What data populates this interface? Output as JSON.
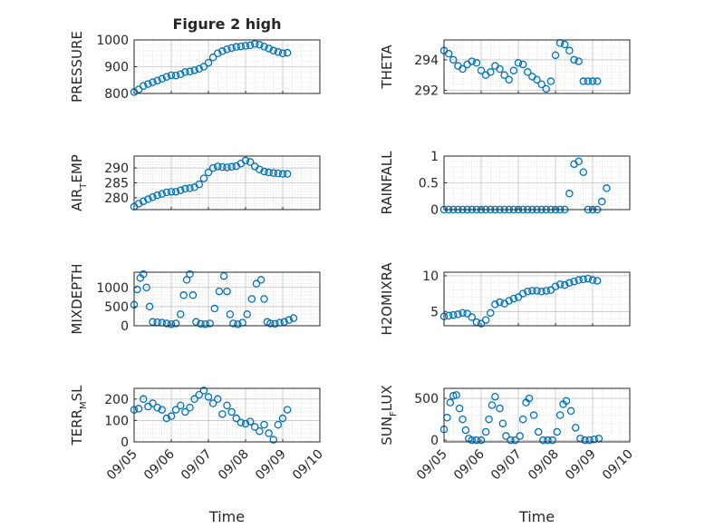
{
  "chart_data": [
    {
      "type": "scatter",
      "panel": "left-1",
      "title": "Figure 2 high",
      "ylabel": "PRESSURE",
      "xlabel": "",
      "ylim": [
        800,
        1000
      ],
      "yticks": [
        800,
        900,
        1000
      ],
      "xlim": [
        "09/05",
        "09/10"
      ],
      "xticks": [
        "09/05",
        "09/06",
        "09/07",
        "09/08",
        "09/09",
        "09/10"
      ],
      "show_x_tick_labels": false,
      "grid": true,
      "minor_grid": true,
      "color": "#0072bd",
      "x": [
        "09/05 00:00",
        "09/05 03:00",
        "09/05 06:00",
        "09/05 09:00",
        "09/05 12:00",
        "09/05 15:00",
        "09/05 18:00",
        "09/05 21:00",
        "09/06 00:00",
        "09/06 03:00",
        "09/06 06:00",
        "09/06 09:00",
        "09/06 12:00",
        "09/06 15:00",
        "09/06 18:00",
        "09/06 21:00",
        "09/07 00:00",
        "09/07 03:00",
        "09/07 06:00",
        "09/07 09:00",
        "09/07 12:00",
        "09/07 15:00",
        "09/07 18:00",
        "09/07 21:00",
        "09/08 00:00",
        "09/08 03:00",
        "09/08 06:00",
        "09/08 09:00",
        "09/08 12:00",
        "09/08 15:00",
        "09/08 18:00",
        "09/08 21:00",
        "09/09 00:00",
        "09/09 03:00"
      ],
      "y": [
        805,
        815,
        828,
        835,
        842,
        848,
        855,
        862,
        868,
        867,
        872,
        880,
        882,
        887,
        892,
        900,
        915,
        935,
        950,
        958,
        965,
        970,
        974,
        976,
        978,
        980,
        985,
        982,
        975,
        968,
        960,
        955,
        950,
        952
      ]
    },
    {
      "type": "scatter",
      "panel": "right-1",
      "ylabel": "THETA",
      "xlabel": "",
      "ylim": [
        291.8,
        295.3
      ],
      "yticks": [
        292,
        294
      ],
      "xlim": [
        "09/05",
        "09/10"
      ],
      "xticks": [
        "09/05",
        "09/06",
        "09/07",
        "09/08",
        "09/09",
        "09/10"
      ],
      "show_x_tick_labels": false,
      "grid": true,
      "minor_grid": true,
      "color": "#0072bd",
      "x": [
        "09/05 00:00",
        "09/05 03:00",
        "09/05 06:00",
        "09/05 09:00",
        "09/05 12:00",
        "09/05 15:00",
        "09/05 18:00",
        "09/05 21:00",
        "09/06 00:00",
        "09/06 03:00",
        "09/06 06:00",
        "09/06 09:00",
        "09/06 12:00",
        "09/06 15:00",
        "09/06 18:00",
        "09/06 21:00",
        "09/07 00:00",
        "09/07 03:00",
        "09/07 06:00",
        "09/07 09:00",
        "09/07 12:00",
        "09/07 15:00",
        "09/07 18:00",
        "09/07 21:00",
        "09/08 00:00",
        "09/08 03:00",
        "09/08 06:00",
        "09/08 09:00",
        "09/08 12:00",
        "09/08 15:00",
        "09/08 18:00",
        "09/08 21:00",
        "09/09 00:00",
        "09/09 03:00"
      ],
      "y": [
        294.6,
        294.4,
        294.0,
        293.6,
        293.4,
        293.7,
        293.9,
        293.8,
        293.3,
        293.0,
        293.2,
        293.6,
        293.4,
        293.0,
        292.7,
        293.3,
        293.8,
        293.7,
        293.2,
        292.9,
        292.7,
        292.4,
        292.1,
        292.6,
        294.3,
        295.1,
        295.0,
        294.6,
        294.0,
        293.9,
        292.6,
        292.6,
        292.6,
        292.6
      ]
    },
    {
      "type": "scatter",
      "panel": "left-2",
      "ylabel": "AIR_TEMP",
      "ylabel_main": "AIR",
      "ylabel_sub": "T",
      "ylabel_rest": "EMP",
      "xlabel": "",
      "ylim": [
        276,
        294
      ],
      "yticks": [
        280,
        285,
        290
      ],
      "xlim": [
        "09/05",
        "09/10"
      ],
      "xticks": [
        "09/05",
        "09/06",
        "09/07",
        "09/08",
        "09/09",
        "09/10"
      ],
      "show_x_tick_labels": false,
      "grid": true,
      "minor_grid": true,
      "color": "#0072bd",
      "x": [
        "09/05 00:00",
        "09/05 03:00",
        "09/05 06:00",
        "09/05 09:00",
        "09/05 12:00",
        "09/05 15:00",
        "09/05 18:00",
        "09/05 21:00",
        "09/06 00:00",
        "09/06 03:00",
        "09/06 06:00",
        "09/06 09:00",
        "09/06 12:00",
        "09/06 15:00",
        "09/06 18:00",
        "09/06 21:00",
        "09/07 00:00",
        "09/07 03:00",
        "09/07 06:00",
        "09/07 09:00",
        "09/07 12:00",
        "09/07 15:00",
        "09/07 18:00",
        "09/07 21:00",
        "09/08 00:00",
        "09/08 03:00",
        "09/08 06:00",
        "09/08 09:00",
        "09/08 12:00",
        "09/08 15:00",
        "09/08 18:00",
        "09/08 21:00",
        "09/09 00:00",
        "09/09 03:00"
      ],
      "y": [
        277,
        278,
        278.8,
        279.5,
        280.2,
        280.8,
        281.3,
        281.8,
        282.0,
        282.0,
        282.5,
        283.0,
        283.2,
        283.5,
        284.5,
        286.5,
        288.5,
        290.0,
        290.5,
        290.3,
        290.2,
        290.4,
        290.6,
        291.5,
        292.5,
        292.0,
        290.5,
        289.5,
        288.8,
        288.5,
        288.3,
        288.2,
        288.0,
        288.0
      ]
    },
    {
      "type": "scatter",
      "panel": "right-2",
      "ylabel": "RAINFALL",
      "xlabel": "",
      "ylim": [
        0,
        1
      ],
      "yticks": [
        0,
        0.5,
        1
      ],
      "xlim": [
        "09/05",
        "09/10"
      ],
      "xticks": [
        "09/05",
        "09/06",
        "09/07",
        "09/08",
        "09/09",
        "09/10"
      ],
      "show_x_tick_labels": false,
      "grid": true,
      "minor_grid": true,
      "color": "#0072bd",
      "x": [
        "09/05 00:00",
        "09/05 03:00",
        "09/05 06:00",
        "09/05 09:00",
        "09/05 12:00",
        "09/05 15:00",
        "09/05 18:00",
        "09/05 21:00",
        "09/06 00:00",
        "09/06 03:00",
        "09/06 06:00",
        "09/06 09:00",
        "09/06 12:00",
        "09/06 15:00",
        "09/06 18:00",
        "09/06 21:00",
        "09/07 00:00",
        "09/07 03:00",
        "09/07 06:00",
        "09/07 09:00",
        "09/07 12:00",
        "09/07 15:00",
        "09/07 18:00",
        "09/07 21:00",
        "09/08 00:00",
        "09/08 03:00",
        "09/08 06:00",
        "09/08 09:00",
        "09/08 12:00",
        "09/08 15:00",
        "09/08 18:00",
        "09/08 21:00",
        "09/09 00:00",
        "09/09 03:00",
        "09/09 06:00",
        "09/09 09:00"
      ],
      "y": [
        0,
        0,
        0,
        0,
        0,
        0,
        0,
        0,
        0,
        0,
        0,
        0,
        0,
        0,
        0,
        0,
        0,
        0,
        0,
        0,
        0,
        0,
        0,
        0,
        0,
        0,
        0,
        0.3,
        0.85,
        0.9,
        0.7,
        0,
        0,
        0,
        0.15,
        0.4
      ]
    },
    {
      "type": "scatter",
      "panel": "left-3",
      "ylabel": "MIXDEPTH",
      "xlabel": "",
      "ylim": [
        0,
        1400
      ],
      "yticks": [
        0,
        500,
        1000
      ],
      "xlim": [
        "09/05",
        "09/10"
      ],
      "xticks": [
        "09/05",
        "09/06",
        "09/07",
        "09/08",
        "09/09",
        "09/10"
      ],
      "show_x_tick_labels": false,
      "grid": true,
      "minor_grid": true,
      "color": "#0072bd",
      "x": [
        "09/05 00:00",
        "09/05 02:00",
        "09/05 04:00",
        "09/05 06:00",
        "09/05 08:00",
        "09/05 10:00",
        "09/05 12:00",
        "09/05 15:00",
        "09/05 18:00",
        "09/05 21:00",
        "09/06 00:00",
        "09/06 03:00",
        "09/06 06:00",
        "09/06 08:00",
        "09/06 10:00",
        "09/06 12:00",
        "09/06 14:00",
        "09/06 16:00",
        "09/06 19:00",
        "09/06 22:00",
        "09/07 01:00",
        "09/07 04:00",
        "09/07 07:00",
        "09/07 10:00",
        "09/07 12:00",
        "09/07 14:00",
        "09/07 16:00",
        "09/07 19:00",
        "09/07 22:00",
        "09/08 01:00",
        "09/08 04:00",
        "09/08 07:00",
        "09/08 10:00",
        "09/08 12:00",
        "09/08 14:00",
        "09/08 16:00",
        "09/08 19:00",
        "09/08 22:00",
        "09/09 01:00",
        "09/09 04:00",
        "09/09 07:00"
      ],
      "y": [
        550,
        950,
        1250,
        1350,
        1000,
        500,
        100,
        90,
        80,
        60,
        40,
        60,
        300,
        800,
        1200,
        1350,
        800,
        100,
        50,
        40,
        60,
        450,
        900,
        1300,
        900,
        300,
        60,
        40,
        80,
        300,
        700,
        1100,
        1200,
        700,
        100,
        60,
        50,
        80,
        100,
        150,
        200
      ]
    },
    {
      "type": "scatter",
      "panel": "right-3",
      "ylabel": "H2OMIXRA",
      "xlabel": "",
      "ylim": [
        3,
        10.5
      ],
      "yticks": [
        5,
        10
      ],
      "xlim": [
        "09/05",
        "09/10"
      ],
      "xticks": [
        "09/05",
        "09/06",
        "09/07",
        "09/08",
        "09/09",
        "09/10"
      ],
      "show_x_tick_labels": false,
      "grid": true,
      "minor_grid": true,
      "color": "#0072bd",
      "x": [
        "09/05 00:00",
        "09/05 03:00",
        "09/05 06:00",
        "09/05 09:00",
        "09/05 12:00",
        "09/05 15:00",
        "09/05 18:00",
        "09/05 21:00",
        "09/06 00:00",
        "09/06 03:00",
        "09/06 06:00",
        "09/06 09:00",
        "09/06 12:00",
        "09/06 15:00",
        "09/06 18:00",
        "09/06 21:00",
        "09/07 00:00",
        "09/07 03:00",
        "09/07 06:00",
        "09/07 09:00",
        "09/07 12:00",
        "09/07 15:00",
        "09/07 18:00",
        "09/07 21:00",
        "09/08 00:00",
        "09/08 03:00",
        "09/08 06:00",
        "09/08 09:00",
        "09/08 12:00",
        "09/08 15:00",
        "09/08 18:00",
        "09/08 21:00",
        "09/09 00:00",
        "09/09 03:00"
      ],
      "y": [
        4.3,
        4.4,
        4.5,
        4.6,
        4.8,
        4.7,
        4.2,
        3.5,
        3.3,
        3.8,
        4.8,
        6.0,
        6.3,
        6.1,
        6.5,
        6.8,
        7.0,
        7.5,
        7.8,
        7.9,
        7.9,
        7.8,
        7.9,
        8.0,
        8.5,
        8.8,
        8.7,
        9.0,
        9.2,
        9.4,
        9.5,
        9.6,
        9.4,
        9.3
      ]
    },
    {
      "type": "scatter",
      "panel": "left-4",
      "ylabel": "TERR_MSL",
      "ylabel_main": "TERR",
      "ylabel_sub": "M",
      "ylabel_rest": "SL",
      "xlabel": "Time",
      "ylim": [
        0,
        250
      ],
      "yticks": [
        0,
        100,
        200
      ],
      "xlim": [
        "09/05",
        "09/10"
      ],
      "xticks": [
        "09/05",
        "09/06",
        "09/07",
        "09/08",
        "09/09",
        "09/10"
      ],
      "show_x_tick_labels": true,
      "grid": true,
      "minor_grid": true,
      "color": "#0072bd",
      "x": [
        "09/05 00:00",
        "09/05 03:00",
        "09/05 06:00",
        "09/05 09:00",
        "09/05 12:00",
        "09/05 15:00",
        "09/05 18:00",
        "09/05 21:00",
        "09/06 00:00",
        "09/06 03:00",
        "09/06 06:00",
        "09/06 09:00",
        "09/06 12:00",
        "09/06 15:00",
        "09/06 18:00",
        "09/06 21:00",
        "09/07 00:00",
        "09/07 03:00",
        "09/07 06:00",
        "09/07 09:00",
        "09/07 12:00",
        "09/07 15:00",
        "09/07 18:00",
        "09/07 21:00",
        "09/08 00:00",
        "09/08 03:00",
        "09/08 06:00",
        "09/08 09:00",
        "09/08 12:00",
        "09/08 15:00",
        "09/08 18:00",
        "09/08 21:00",
        "09/09 00:00",
        "09/09 03:00"
      ],
      "y": [
        150,
        155,
        200,
        165,
        180,
        160,
        150,
        110,
        120,
        150,
        170,
        140,
        160,
        200,
        220,
        240,
        210,
        180,
        200,
        130,
        170,
        140,
        110,
        90,
        85,
        95,
        70,
        50,
        80,
        40,
        10,
        80,
        110,
        150
      ]
    },
    {
      "type": "scatter",
      "panel": "right-4",
      "ylabel": "SUN_FLUX",
      "ylabel_main": "SUN",
      "ylabel_sub": "F",
      "ylabel_rest": "LUX",
      "xlabel": "Time",
      "ylim": [
        -20,
        620
      ],
      "yticks": [
        0,
        500
      ],
      "xlim": [
        "09/05",
        "09/10"
      ],
      "xticks": [
        "09/05",
        "09/06",
        "09/07",
        "09/08",
        "09/09",
        "09/10"
      ],
      "show_x_tick_labels": true,
      "grid": true,
      "minor_grid": true,
      "color": "#0072bd",
      "x": [
        "09/05 00:00",
        "09/05 02:00",
        "09/05 04:00",
        "09/05 06:00",
        "09/05 08:00",
        "09/05 10:00",
        "09/05 12:00",
        "09/05 14:00",
        "09/05 16:00",
        "09/05 18:00",
        "09/05 21:00",
        "09/06 00:00",
        "09/06 03:00",
        "09/06 05:00",
        "09/06 07:00",
        "09/06 09:00",
        "09/06 12:00",
        "09/06 14:00",
        "09/06 16:00",
        "09/06 19:00",
        "09/06 22:00",
        "09/07 01:00",
        "09/07 03:00",
        "09/07 05:00",
        "09/07 07:00",
        "09/07 10:00",
        "09/07 13:00",
        "09/07 16:00",
        "09/07 19:00",
        "09/07 22:00",
        "09/08 01:00",
        "09/08 03:00",
        "09/08 05:00",
        "09/08 07:00",
        "09/08 10:00",
        "09/08 13:00",
        "09/08 16:00",
        "09/08 19:00",
        "09/08 22:00",
        "09/09 01:00",
        "09/09 04:00"
      ],
      "y": [
        130,
        270,
        450,
        530,
        540,
        380,
        250,
        120,
        20,
        0,
        0,
        0,
        100,
        250,
        420,
        520,
        380,
        200,
        50,
        0,
        0,
        50,
        250,
        450,
        500,
        300,
        100,
        0,
        0,
        0,
        100,
        300,
        430,
        470,
        350,
        150,
        20,
        0,
        0,
        10,
        20
      ]
    }
  ]
}
